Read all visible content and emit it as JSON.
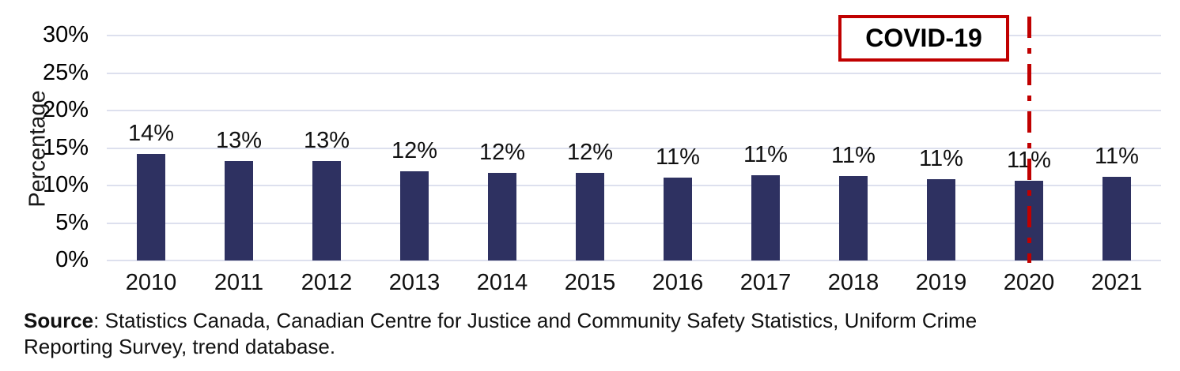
{
  "chart_data": {
    "type": "bar",
    "title": "",
    "xlabel": "",
    "ylabel": "Percentage",
    "categories": [
      "2010",
      "2011",
      "2012",
      "2013",
      "2014",
      "2015",
      "2016",
      "2017",
      "2018",
      "2019",
      "2020",
      "2021"
    ],
    "values": [
      14.2,
      13.3,
      13.3,
      11.9,
      11.7,
      11.7,
      11.1,
      11.4,
      11.3,
      10.8,
      10.6,
      11.2
    ],
    "bar_labels": [
      "14%",
      "13%",
      "13%",
      "12%",
      "12%",
      "12%",
      "11%",
      "11%",
      "11%",
      "11%",
      "11%",
      "11%"
    ],
    "ylim": [
      0,
      30
    ],
    "ytick_values": [
      0,
      5,
      10,
      15,
      20,
      25,
      30
    ],
    "ytick_labels": [
      "0%",
      "5%",
      "10%",
      "15%",
      "20%",
      "25%",
      "30%"
    ],
    "grid": true,
    "legend": "none",
    "bar_color": "#2E3161",
    "gridline_color": "#DDE0EE",
    "annotation": {
      "label": "COVID-19",
      "at_category": "2020",
      "line_style": "dash-dot",
      "color": "#C00000"
    }
  },
  "source_note": {
    "prefix": "Source",
    "rest": ": Statistics Canada, Canadian Centre for Justice and Community Safety Statistics, Uniform Crime Reporting Survey, trend database."
  }
}
